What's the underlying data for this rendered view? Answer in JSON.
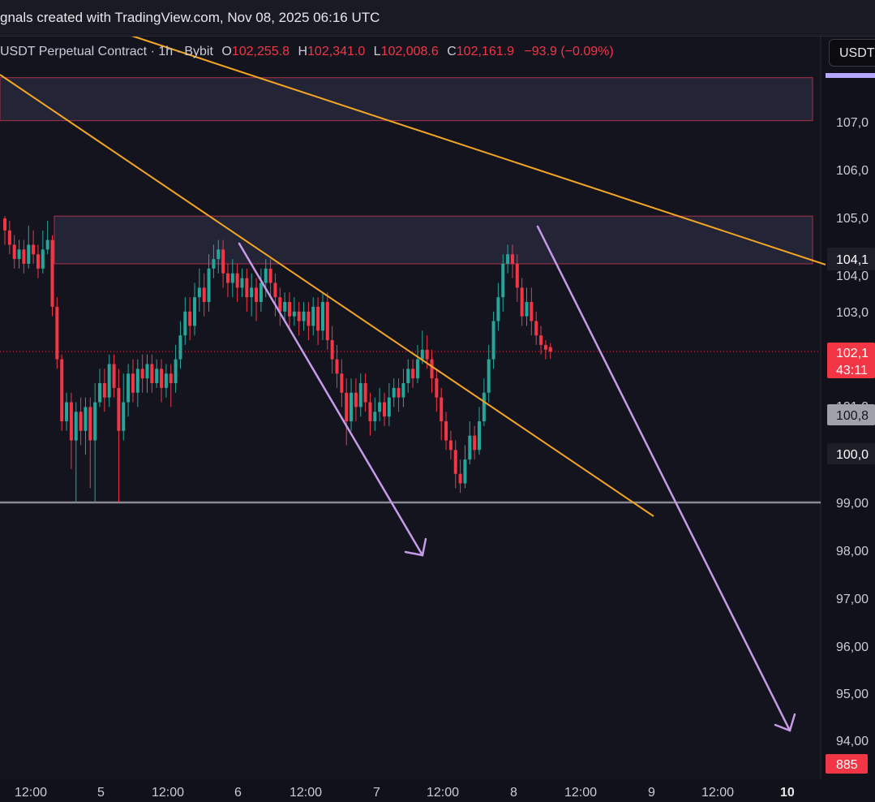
{
  "header": {
    "title": "gnals created with TradingView.com, Nov 08, 2025 06:16 UTC",
    "currency_button": "USDT"
  },
  "legend": {
    "symbol": "USDT Perpetual Contract · 1h · Bybit",
    "open_label": "O",
    "open": "102,255.8",
    "high_label": "H",
    "high": "102,341.0",
    "low_label": "L",
    "low": "102,008.6",
    "close_label": "C",
    "close": "102,161.9",
    "change": "−93.9 (−0.09%)"
  },
  "colors": {
    "background": "#14141f",
    "bull": "#26a69a",
    "bear": "#f23645",
    "trendline": "#f5a623",
    "arrow": "#c79be8",
    "zone_fill": "#2a2a40",
    "zone_border": "#a8324a",
    "support": "#8a8a94"
  },
  "price_axis": {
    "ticks": [
      "107,0",
      "106,0",
      "105,0",
      "103,0",
      "98,00",
      "97,00",
      "96,00",
      "95,00",
      "94,00"
    ],
    "hidden_ticks": [
      "104,0",
      "101,0"
    ],
    "badges": [
      {
        "text": "104,1",
        "style": "dark"
      },
      {
        "text": "102,1",
        "style": "red"
      },
      {
        "text": "43:11",
        "style": "red"
      },
      {
        "text": "100,8",
        "style": "gray"
      },
      {
        "text": "100,0",
        "style": "dark"
      },
      {
        "text": "99,00",
        "style": "plain"
      },
      {
        "text": "885",
        "style": "red"
      }
    ]
  },
  "time_axis": {
    "ticks": [
      {
        "label": "12:00",
        "bold": false
      },
      {
        "label": "5",
        "bold": false
      },
      {
        "label": "12:00",
        "bold": false
      },
      {
        "label": "6",
        "bold": false
      },
      {
        "label": "12:00",
        "bold": false
      },
      {
        "label": "7",
        "bold": false
      },
      {
        "label": "12:00",
        "bold": false
      },
      {
        "label": "8",
        "bold": false
      },
      {
        "label": "12:00",
        "bold": false
      },
      {
        "label": "9",
        "bold": false
      },
      {
        "label": "12:00",
        "bold": false
      },
      {
        "label": "10",
        "bold": true
      }
    ]
  },
  "chart_data": {
    "type": "candlestick",
    "timeframe": "1h",
    "ylim": [
      93800,
      108000
    ],
    "current_price": 102161.9,
    "candles": [
      [
        104950,
        104700,
        105000,
        104400
      ],
      [
        104700,
        104400,
        104900,
        104200
      ],
      [
        104400,
        104100,
        104600,
        103900
      ],
      [
        104100,
        104300,
        104500,
        103900
      ],
      [
        104300,
        104000,
        104500,
        103800
      ],
      [
        104000,
        104400,
        104800,
        103900
      ],
      [
        104400,
        104200,
        104700,
        104000
      ],
      [
        104200,
        103900,
        104400,
        103700
      ],
      [
        103900,
        104300,
        104700,
        103800
      ],
      [
        104300,
        104500,
        104900,
        104200
      ],
      [
        104500,
        103100,
        104600,
        102900
      ],
      [
        103100,
        102000,
        103300,
        101800
      ],
      [
        102000,
        100700,
        102100,
        100500
      ],
      [
        100700,
        101100,
        101300,
        100500
      ],
      [
        101100,
        100300,
        101300,
        99700
      ],
      [
        100300,
        100900,
        101100,
        99000
      ],
      [
        100900,
        100500,
        101200,
        100200
      ],
      [
        100500,
        101000,
        101200,
        100000
      ],
      [
        101000,
        100300,
        101200,
        99300
      ],
      [
        100300,
        101100,
        101500,
        99000
      ],
      [
        101100,
        101500,
        101800,
        101000
      ],
      [
        101500,
        101200,
        101800,
        100900
      ],
      [
        101200,
        101900,
        102100,
        101000
      ],
      [
        101900,
        101400,
        102100,
        101200
      ],
      [
        101400,
        100500,
        101800,
        99000
      ],
      [
        100500,
        101100,
        101700,
        100300
      ],
      [
        101100,
        101700,
        101900,
        100800
      ],
      [
        101700,
        101300,
        102000,
        101100
      ],
      [
        101300,
        101800,
        102000,
        101000
      ],
      [
        101800,
        101600,
        102100,
        101300
      ],
      [
        101600,
        101900,
        102100,
        101300
      ],
      [
        101900,
        101500,
        102100,
        101300
      ],
      [
        101500,
        101800,
        102000,
        101400
      ],
      [
        101800,
        101400,
        102000,
        101100
      ],
      [
        101400,
        101700,
        101900,
        101200
      ],
      [
        101700,
        101500,
        101900,
        101000
      ],
      [
        101500,
        102000,
        102300,
        101300
      ],
      [
        102000,
        102500,
        102800,
        101800
      ],
      [
        102500,
        103000,
        103300,
        102300
      ],
      [
        103000,
        102700,
        103300,
        102400
      ],
      [
        102700,
        103300,
        103600,
        102500
      ],
      [
        103300,
        103500,
        103900,
        103000
      ],
      [
        103500,
        103200,
        103800,
        102900
      ],
      [
        103200,
        103900,
        104200,
        103000
      ],
      [
        103900,
        104100,
        104400,
        103700
      ],
      [
        104100,
        104300,
        104500,
        103800
      ],
      [
        104300,
        103800,
        104500,
        103500
      ],
      [
        103800,
        103600,
        104000,
        103300
      ],
      [
        103600,
        103800,
        104100,
        103300
      ],
      [
        103800,
        103500,
        104000,
        103200
      ],
      [
        103500,
        103700,
        103900,
        103300
      ],
      [
        103700,
        103300,
        103900,
        103000
      ],
      [
        103300,
        103500,
        103800,
        102900
      ],
      [
        103500,
        103200,
        103700,
        102800
      ],
      [
        103200,
        103600,
        103900,
        103000
      ],
      [
        103600,
        103900,
        104100,
        103300
      ],
      [
        103900,
        103600,
        104100,
        103300
      ],
      [
        103600,
        103300,
        103800,
        102900
      ],
      [
        103300,
        103000,
        103500,
        102700
      ],
      [
        103000,
        103200,
        103400,
        102800
      ],
      [
        103200,
        102900,
        103400,
        102600
      ],
      [
        102900,
        103000,
        103300,
        102700
      ],
      [
        103000,
        102800,
        103200,
        102500
      ],
      [
        102800,
        103000,
        103200,
        102600
      ],
      [
        103000,
        102700,
        103200,
        102400
      ],
      [
        102700,
        103100,
        103300,
        102500
      ],
      [
        103100,
        102600,
        103300,
        102300
      ],
      [
        102600,
        103200,
        103400,
        102400
      ],
      [
        103200,
        102400,
        103400,
        102200
      ],
      [
        102400,
        102000,
        102700,
        101700
      ],
      [
        102000,
        101700,
        102300,
        101400
      ],
      [
        101700,
        101300,
        102000,
        101000
      ],
      [
        101300,
        100700,
        101600,
        100200
      ],
      [
        100700,
        101300,
        101600,
        100500
      ],
      [
        101300,
        101000,
        101600,
        100700
      ],
      [
        101000,
        101500,
        101700,
        100800
      ],
      [
        101500,
        101100,
        101700,
        100900
      ],
      [
        101100,
        100700,
        101300,
        100400
      ],
      [
        100700,
        100900,
        101200,
        100500
      ],
      [
        100900,
        101100,
        101400,
        100700
      ],
      [
        101100,
        100800,
        101300,
        100600
      ],
      [
        100800,
        101200,
        101500,
        100600
      ],
      [
        101200,
        101400,
        101600,
        101000
      ],
      [
        101400,
        101200,
        101600,
        100900
      ],
      [
        101200,
        101500,
        101800,
        101000
      ],
      [
        101500,
        101800,
        102000,
        101300
      ],
      [
        101800,
        101600,
        102000,
        101400
      ],
      [
        101600,
        102000,
        102300,
        101500
      ],
      [
        102000,
        102200,
        102600,
        101900
      ],
      [
        102200,
        102000,
        102500,
        101800
      ],
      [
        102000,
        101600,
        102200,
        101300
      ],
      [
        101600,
        101200,
        101800,
        100900
      ],
      [
        101200,
        100700,
        101400,
        100300
      ],
      [
        100700,
        100300,
        100900,
        100100
      ],
      [
        100300,
        100100,
        100500,
        99900
      ],
      [
        100100,
        99600,
        100300,
        99300
      ],
      [
        99600,
        99400,
        99900,
        99200
      ],
      [
        99400,
        99900,
        100200,
        99300
      ],
      [
        99900,
        100400,
        100700,
        99800
      ],
      [
        100400,
        100100,
        100600,
        99900
      ],
      [
        100100,
        100700,
        101000,
        100000
      ],
      [
        100700,
        101300,
        101600,
        100600
      ],
      [
        101300,
        102000,
        102300,
        101100
      ],
      [
        102000,
        102800,
        103000,
        101800
      ],
      [
        102800,
        103300,
        103600,
        102600
      ],
      [
        103300,
        104000,
        104200,
        103000
      ],
      [
        104000,
        104200,
        104400,
        103800
      ],
      [
        104200,
        104000,
        104400,
        103700
      ],
      [
        104000,
        103500,
        104200,
        103200
      ],
      [
        103500,
        102900,
        103700,
        102700
      ],
      [
        102900,
        103200,
        103500,
        102700
      ],
      [
        103200,
        102800,
        103500,
        102500
      ],
      [
        102800,
        102500,
        103000,
        102300
      ],
      [
        102500,
        102300,
        102700,
        102100
      ],
      [
        102300,
        102200,
        102400,
        102000
      ],
      [
        102255.8,
        102161.9,
        102341.0,
        102008.6
      ]
    ],
    "zones": [
      {
        "y_top": 107900,
        "y_bottom": 107000
      },
      {
        "y_top": 105000,
        "y_bottom": 104000
      }
    ],
    "support_level": 99000
  }
}
